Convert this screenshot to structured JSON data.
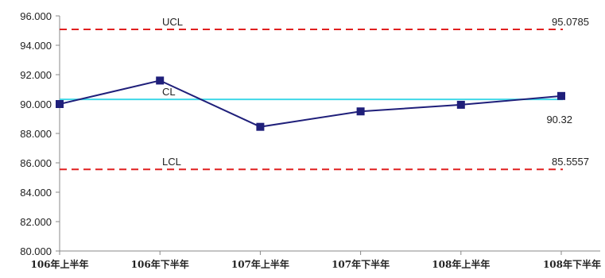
{
  "chart_data": {
    "type": "line",
    "categories": [
      "106年上半年",
      "106年下半年",
      "107年上半年",
      "107年下半年",
      "108年上半年",
      "108年下半年"
    ],
    "series": [
      {
        "values": [
          90.0,
          91.6,
          88.45,
          89.5,
          89.95,
          90.55
        ],
        "color": "#1f1f7a"
      }
    ],
    "ylim": [
      80,
      96
    ],
    "yticks": [
      "80.000",
      "82.000",
      "84.000",
      "86.000",
      "88.000",
      "90.000",
      "92.000",
      "94.000",
      "96.000"
    ],
    "control_lines": {
      "ucl": {
        "label": "UCL",
        "value": 95.0785,
        "value_label": "95.0785",
        "color": "#e02020"
      },
      "cl": {
        "label": "CL",
        "value": 90.32,
        "value_label": "90.32",
        "color": "#40d8e8"
      },
      "lcl": {
        "label": "LCL",
        "value": 85.5557,
        "value_label": "85.5557",
        "color": "#e02020"
      }
    },
    "grid": false,
    "legend": "none"
  }
}
